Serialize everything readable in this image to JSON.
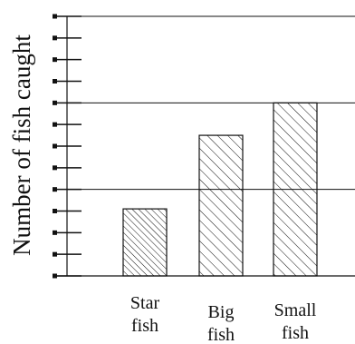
{
  "chart_data": {
    "type": "bar",
    "title": "",
    "xlabel": "",
    "ylabel": "Number of fish caught",
    "categories": [
      {
        "line1": "Star",
        "line2": "fish"
      },
      {
        "line1": "Big",
        "line2": "fish"
      },
      {
        "line1": "Small",
        "line2": "fish"
      }
    ],
    "values": [
      3.1,
      6.5,
      8.0
    ],
    "ylim": [
      0,
      12
    ],
    "tick_values": [
      0,
      1,
      2,
      3,
      4,
      5,
      6,
      7,
      8,
      9,
      10,
      11,
      12
    ],
    "gridlines": [
      4,
      8,
      12
    ],
    "grid": true,
    "tick_labels_shown": false,
    "bar_fill": "hatched",
    "colors": {
      "ink": "#111111",
      "background": "#ffffff"
    }
  }
}
